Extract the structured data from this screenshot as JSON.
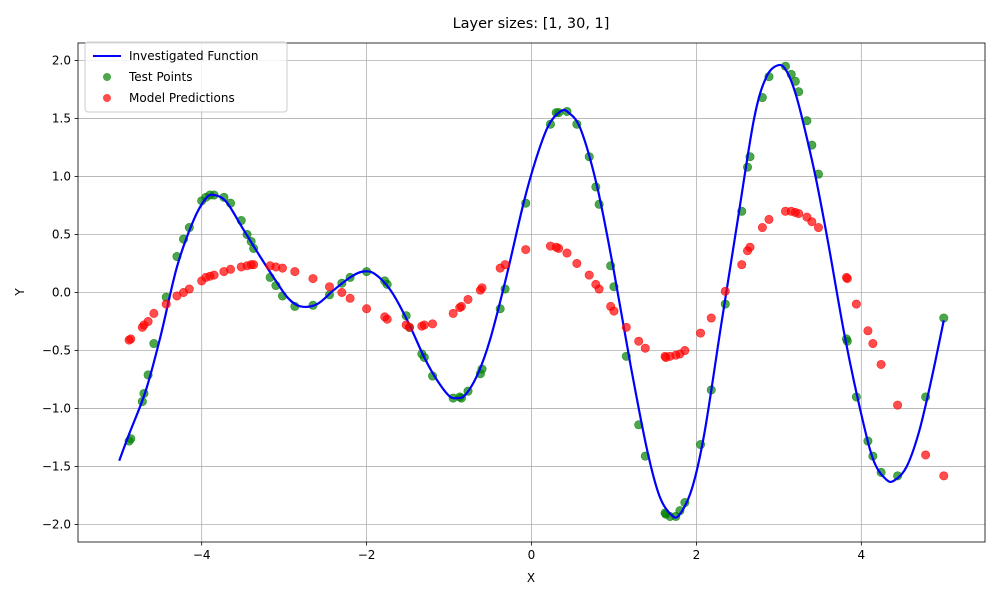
{
  "chart_data": {
    "type": "scatter",
    "title": "Layer sizes: [1, 30, 1]",
    "xlabel": "X",
    "ylabel": "Y",
    "xlim": [
      -5.5,
      5.5
    ],
    "ylim": [
      -2.15,
      2.15
    ],
    "xticks": [
      -4,
      -2,
      0,
      2,
      4
    ],
    "xtick_labels": [
      "−4",
      "−2",
      "0",
      "2",
      "4"
    ],
    "yticks": [
      -2.0,
      -1.5,
      -1.0,
      -0.5,
      0.0,
      0.5,
      1.0,
      1.5,
      2.0
    ],
    "ytick_labels": [
      "−2.0",
      "−1.5",
      "−1.0",
      "−0.5",
      "0.0",
      "0.5",
      "1.0",
      "1.5",
      "2.0"
    ],
    "grid": true,
    "legend_position": "top-left",
    "series": [
      {
        "name": "Investigated Function",
        "kind": "line",
        "color": "#0000ff",
        "x": [
          -5.0,
          -4.88,
          -4.68,
          -4.5,
          -4.3,
          -4.1,
          -3.95,
          -3.85,
          -3.7,
          -3.5,
          -3.3,
          -3.1,
          -2.95,
          -2.8,
          -2.6,
          -2.4,
          -2.2,
          -2.05,
          -1.9,
          -1.7,
          -1.5,
          -1.3,
          -1.15,
          -1.0,
          -0.9,
          -0.8,
          -0.65,
          -0.5,
          -0.3,
          -0.1,
          0.05,
          0.2,
          0.35,
          0.45,
          0.6,
          0.8,
          1.0,
          1.2,
          1.4,
          1.55,
          1.7,
          1.8,
          1.95,
          2.1,
          2.3,
          2.5,
          2.7,
          2.85,
          3.0,
          3.1,
          3.2,
          3.3,
          3.45,
          3.6,
          3.8,
          4.0,
          4.15,
          4.3,
          4.4,
          4.55,
          4.7,
          4.85,
          5.0
        ],
        "y": [
          -1.45,
          -1.22,
          -0.85,
          -0.38,
          0.22,
          0.62,
          0.81,
          0.84,
          0.78,
          0.55,
          0.32,
          0.1,
          -0.05,
          -0.12,
          -0.1,
          0.02,
          0.13,
          0.18,
          0.16,
          0.01,
          -0.25,
          -0.56,
          -0.75,
          -0.89,
          -0.91,
          -0.88,
          -0.7,
          -0.4,
          0.15,
          0.76,
          1.14,
          1.43,
          1.56,
          1.55,
          1.4,
          0.9,
          0.18,
          -0.62,
          -1.35,
          -1.75,
          -1.92,
          -1.91,
          -1.68,
          -1.2,
          -0.28,
          0.62,
          1.5,
          1.86,
          1.96,
          1.9,
          1.72,
          1.45,
          0.98,
          0.42,
          -0.38,
          -1.05,
          -1.45,
          -1.61,
          -1.62,
          -1.5,
          -1.2,
          -0.75,
          -0.24
        ]
      },
      {
        "name": "Test Points",
        "kind": "scatter",
        "color": "#008000",
        "x": [
          -4.88,
          -4.86,
          -4.72,
          -4.7,
          -4.65,
          -4.58,
          -4.43,
          -4.3,
          -4.22,
          -4.15,
          -4.0,
          -3.95,
          -3.9,
          -3.85,
          -3.73,
          -3.65,
          -3.52,
          -3.45,
          -3.4,
          -3.37,
          -3.17,
          -3.1,
          -3.02,
          -2.87,
          -2.65,
          -2.45,
          -2.3,
          -2.2,
          -2.0,
          -1.78,
          -1.75,
          -1.52,
          -1.48,
          -1.33,
          -1.3,
          -1.2,
          -0.95,
          -0.87,
          -0.85,
          -0.77,
          -0.62,
          -0.6,
          -0.38,
          -0.32,
          -0.07,
          0.23,
          0.3,
          0.33,
          0.43,
          0.55,
          0.7,
          0.78,
          0.82,
          0.96,
          1.0,
          1.15,
          1.3,
          1.38,
          1.62,
          1.63,
          1.68,
          1.75,
          1.8,
          1.86,
          2.05,
          2.18,
          2.35,
          2.55,
          2.62,
          2.65,
          2.8,
          2.88,
          3.08,
          3.15,
          3.2,
          3.24,
          3.34,
          3.4,
          3.48,
          3.82,
          3.83,
          3.94,
          4.08,
          4.14,
          4.24,
          4.44,
          4.78,
          5.0
        ],
        "y": [
          -1.28,
          -1.26,
          -0.94,
          -0.87,
          -0.71,
          -0.44,
          -0.04,
          0.31,
          0.46,
          0.56,
          0.79,
          0.82,
          0.84,
          0.84,
          0.82,
          0.77,
          0.62,
          0.5,
          0.44,
          0.38,
          0.13,
          0.06,
          -0.03,
          -0.12,
          -0.11,
          -0.02,
          0.08,
          0.13,
          0.18,
          0.1,
          0.07,
          -0.2,
          -0.3,
          -0.53,
          -0.56,
          -0.72,
          -0.91,
          -0.9,
          -0.91,
          -0.85,
          -0.7,
          -0.66,
          -0.14,
          0.03,
          0.77,
          1.45,
          1.55,
          1.55,
          1.56,
          1.45,
          1.17,
          0.91,
          0.76,
          0.23,
          0.05,
          -0.55,
          -1.14,
          -1.41,
          -1.9,
          -1.91,
          -1.93,
          -1.93,
          -1.88,
          -1.81,
          -1.31,
          -0.84,
          -0.1,
          0.7,
          1.08,
          1.17,
          1.68,
          1.86,
          1.95,
          1.88,
          1.82,
          1.73,
          1.48,
          1.27,
          1.02,
          -0.4,
          -0.42,
          -0.9,
          -1.28,
          -1.41,
          -1.55,
          -1.58,
          -0.9,
          -0.22
        ]
      },
      {
        "name": "Model Predictions",
        "kind": "scatter",
        "color": "#ff0000",
        "x": [
          -4.88,
          -4.86,
          -4.72,
          -4.7,
          -4.65,
          -4.58,
          -4.43,
          -4.3,
          -4.22,
          -4.15,
          -4.0,
          -3.95,
          -3.9,
          -3.85,
          -3.73,
          -3.65,
          -3.52,
          -3.45,
          -3.4,
          -3.37,
          -3.17,
          -3.1,
          -3.02,
          -2.87,
          -2.65,
          -2.45,
          -2.3,
          -2.2,
          -2.0,
          -1.78,
          -1.75,
          -1.52,
          -1.48,
          -1.33,
          -1.3,
          -1.2,
          -0.95,
          -0.87,
          -0.85,
          -0.77,
          -0.62,
          -0.6,
          -0.38,
          -0.32,
          -0.07,
          0.23,
          0.3,
          0.33,
          0.43,
          0.55,
          0.7,
          0.78,
          0.82,
          0.96,
          1.0,
          1.15,
          1.3,
          1.38,
          1.62,
          1.63,
          1.68,
          1.75,
          1.8,
          1.86,
          2.05,
          2.18,
          2.35,
          2.55,
          2.62,
          2.65,
          2.8,
          2.88,
          3.08,
          3.15,
          3.2,
          3.24,
          3.34,
          3.4,
          3.48,
          3.82,
          3.83,
          3.94,
          4.08,
          4.14,
          4.24,
          4.44,
          4.78,
          5.0
        ],
        "y": [
          -0.41,
          -0.4,
          -0.3,
          -0.28,
          -0.25,
          -0.18,
          -0.1,
          -0.03,
          0.0,
          0.03,
          0.1,
          0.13,
          0.14,
          0.15,
          0.18,
          0.2,
          0.22,
          0.23,
          0.24,
          0.24,
          0.23,
          0.22,
          0.21,
          0.18,
          0.12,
          0.05,
          0.0,
          -0.05,
          -0.14,
          -0.21,
          -0.23,
          -0.28,
          -0.3,
          -0.29,
          -0.28,
          -0.27,
          -0.18,
          -0.13,
          -0.12,
          -0.06,
          0.02,
          0.04,
          0.21,
          0.24,
          0.37,
          0.4,
          0.39,
          0.38,
          0.34,
          0.25,
          0.15,
          0.07,
          0.03,
          -0.12,
          -0.16,
          -0.3,
          -0.42,
          -0.48,
          -0.55,
          -0.56,
          -0.55,
          -0.54,
          -0.53,
          -0.5,
          -0.35,
          -0.22,
          0.01,
          0.24,
          0.36,
          0.39,
          0.56,
          0.63,
          0.7,
          0.7,
          0.69,
          0.68,
          0.65,
          0.61,
          0.56,
          0.13,
          0.12,
          -0.1,
          -0.33,
          -0.44,
          -0.62,
          -0.97,
          -1.4,
          -1.58
        ]
      }
    ]
  }
}
